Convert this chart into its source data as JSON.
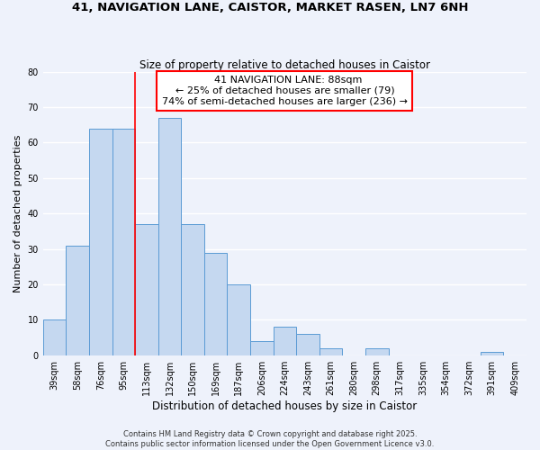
{
  "title1": "41, NAVIGATION LANE, CAISTOR, MARKET RASEN, LN7 6NH",
  "title2": "Size of property relative to detached houses in Caistor",
  "xlabel": "Distribution of detached houses by size in Caistor",
  "ylabel": "Number of detached properties",
  "bar_values": [
    10,
    31,
    64,
    64,
    37,
    67,
    37,
    29,
    20,
    4,
    8,
    6,
    2,
    0,
    2,
    0,
    0,
    0,
    0,
    1,
    0
  ],
  "bin_labels": [
    "39sqm",
    "58sqm",
    "76sqm",
    "95sqm",
    "113sqm",
    "132sqm",
    "150sqm",
    "169sqm",
    "187sqm",
    "206sqm",
    "224sqm",
    "243sqm",
    "261sqm",
    "280sqm",
    "298sqm",
    "317sqm",
    "335sqm",
    "354sqm",
    "372sqm",
    "391sqm",
    "409sqm"
  ],
  "bar_color": "#c5d8f0",
  "bar_edge_color": "#5b9bd5",
  "annotation_text_line1": "41 NAVIGATION LANE: 88sqm",
  "annotation_text_line2": "← 25% of detached houses are smaller (79)",
  "annotation_text_line3": "74% of semi-detached houses are larger (236) →",
  "red_line_x": 3.5,
  "ylim": [
    0,
    80
  ],
  "yticks": [
    0,
    10,
    20,
    30,
    40,
    50,
    60,
    70,
    80
  ],
  "background_color": "#eef2fb",
  "grid_color": "#ffffff",
  "footer_line1": "Contains HM Land Registry data © Crown copyright and database right 2025.",
  "footer_line2": "Contains public sector information licensed under the Open Government Licence v3.0."
}
